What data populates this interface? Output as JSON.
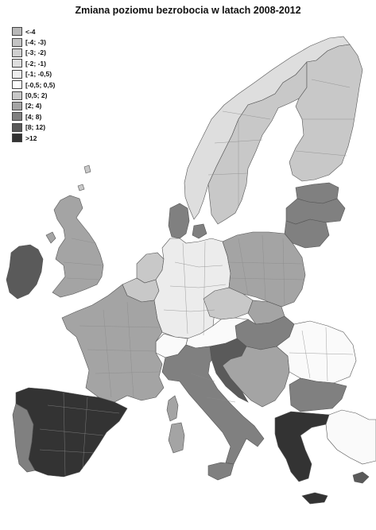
{
  "title": "Zmiana poziomu bezrobocia w latach 2008-2012",
  "legend": [
    {
      "label": "<-4",
      "color": "#b8b8b8"
    },
    {
      "label": "[-4; -3)",
      "color": "#c4c4c4"
    },
    {
      "label": "[-3; -2)",
      "color": "#d0d0d0"
    },
    {
      "label": "[-2; -1)",
      "color": "#dedede"
    },
    {
      "label": "[-1; -0,5)",
      "color": "#ececec"
    },
    {
      "label": "[-0,5; 0,5)",
      "color": "#fafafa"
    },
    {
      "label": "[0,5; 2)",
      "color": "#c8c8c8"
    },
    {
      "label": "[2; 4)",
      "color": "#a4a4a4"
    },
    {
      "label": "[4; 8)",
      "color": "#808080"
    },
    {
      "label": "[8; 12)",
      "color": "#5a5a5a"
    },
    {
      "label": ">12",
      "color": "#333333"
    }
  ],
  "regions": [
    {
      "name": "norway",
      "class": 3
    },
    {
      "name": "sweden",
      "class": 6
    },
    {
      "name": "finland",
      "class": 6
    },
    {
      "name": "estonia",
      "class": 8
    },
    {
      "name": "latvia",
      "class": 8
    },
    {
      "name": "lithuania",
      "class": 8
    },
    {
      "name": "ireland",
      "class": 9
    },
    {
      "name": "uk",
      "class": 7
    },
    {
      "name": "iceland-shetland",
      "class": 6
    },
    {
      "name": "denmark",
      "class": 8
    },
    {
      "name": "netherlands",
      "class": 6
    },
    {
      "name": "belgium",
      "class": 6
    },
    {
      "name": "germany",
      "class": 4
    },
    {
      "name": "poland",
      "class": 7
    },
    {
      "name": "czechia",
      "class": 6
    },
    {
      "name": "slovakia",
      "class": 7
    },
    {
      "name": "hungary",
      "class": 8
    },
    {
      "name": "austria",
      "class": 5
    },
    {
      "name": "switzerland",
      "class": 5
    },
    {
      "name": "france",
      "class": 7
    },
    {
      "name": "italy",
      "class": 8
    },
    {
      "name": "slovenia-croatia",
      "class": 9
    },
    {
      "name": "serbia-bosnia",
      "class": 7
    },
    {
      "name": "romania",
      "class": 5
    },
    {
      "name": "bulgaria",
      "class": 8
    },
    {
      "name": "greece",
      "class": 10
    },
    {
      "name": "spain",
      "class": 10
    },
    {
      "name": "portugal",
      "class": 8
    },
    {
      "name": "corsica",
      "class": 7
    },
    {
      "name": "sardinia",
      "class": 7
    },
    {
      "name": "sicily",
      "class": 8
    },
    {
      "name": "cyprus",
      "class": 9
    },
    {
      "name": "crete",
      "class": 10
    },
    {
      "name": "turkey",
      "class": 5
    }
  ]
}
